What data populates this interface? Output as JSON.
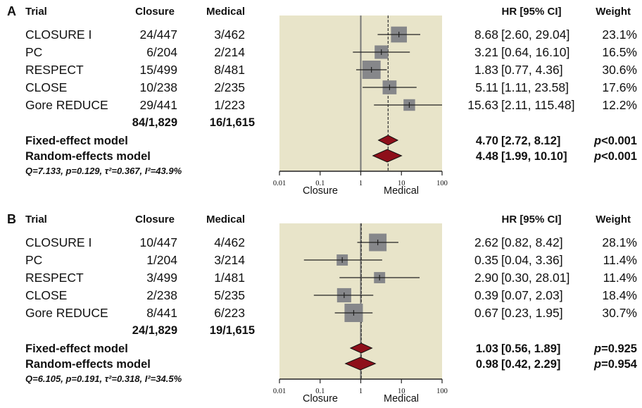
{
  "chart_data": [
    {
      "type": "forest",
      "panel_label": "A",
      "headers": {
        "trial": "Trial",
        "closure": "Closure",
        "medical": "Medical",
        "hr": "HR [95% CI]",
        "weight": "Weight"
      },
      "x_scale": "log",
      "xlim": [
        0.01,
        100
      ],
      "x_ticks": [
        "0.01",
        "0.1",
        "1",
        "10",
        "100"
      ],
      "x_direction_labels": {
        "left": "Closure",
        "right": "Medical"
      },
      "studies": [
        {
          "trial": "CLOSURE I",
          "closure": "24/447",
          "medical": "3/462",
          "hr": 8.68,
          "lo": 2.6,
          "hi": 29.04,
          "hr_text": "8.68",
          "ci_text": "[2.60, 29.04]",
          "weight": 23.1,
          "weight_text": "23.1%"
        },
        {
          "trial": "PC",
          "closure": "6/204",
          "medical": "2/214",
          "hr": 3.21,
          "lo": 0.64,
          "hi": 16.1,
          "hr_text": "3.21",
          "ci_text": "[0.64, 16.10]",
          "weight": 16.5,
          "weight_text": "16.5%"
        },
        {
          "trial": "RESPECT",
          "closure": "15/499",
          "medical": "8/481",
          "hr": 1.83,
          "lo": 0.77,
          "hi": 4.36,
          "hr_text": "1.83",
          "ci_text": "[0.77, 4.36]",
          "weight": 30.6,
          "weight_text": "30.6%"
        },
        {
          "trial": "CLOSE",
          "closure": "10/238",
          "medical": "2/235",
          "hr": 5.11,
          "lo": 1.11,
          "hi": 23.58,
          "hr_text": "5.11",
          "ci_text": "[1.11, 23.58]",
          "weight": 17.6,
          "weight_text": "17.6%"
        },
        {
          "trial": "Gore REDUCE",
          "closure": "29/441",
          "medical": "1/223",
          "hr": 15.63,
          "lo": 2.11,
          "hi": 115.48,
          "hr_text": "15.63",
          "ci_text": "[2.11, 115.48]",
          "weight": 12.2,
          "weight_text": "12.2%"
        }
      ],
      "totals": {
        "closure": "84/1,829",
        "medical": "16/1,615"
      },
      "models": [
        {
          "name": "Fixed-effect model",
          "hr": 4.7,
          "lo": 2.72,
          "hi": 8.12,
          "hr_text": "4.70",
          "ci_text": "[2.72, 8.12]",
          "p_prefix": "p",
          "p_text": "<0.001"
        },
        {
          "name": "Random-effects model",
          "hr": 4.48,
          "lo": 1.99,
          "hi": 10.1,
          "hr_text": "4.48",
          "ci_text": "[1.99, 10.10]",
          "p_prefix": "p",
          "p_text": "<0.001"
        }
      ],
      "heterogeneity": "Q=7.133, p=0.129, τ²=0.367, I²=43.9%"
    },
    {
      "type": "forest",
      "panel_label": "B",
      "headers": {
        "trial": "Trial",
        "closure": "Closure",
        "medical": "Medical",
        "hr": "HR [95% CI]",
        "weight": "Weight"
      },
      "x_scale": "log",
      "xlim": [
        0.01,
        100
      ],
      "x_ticks": [
        "0.01",
        "0.1",
        "1",
        "10",
        "100"
      ],
      "x_direction_labels": {
        "left": "Closure",
        "right": "Medical"
      },
      "studies": [
        {
          "trial": "CLOSURE I",
          "closure": "10/447",
          "medical": "4/462",
          "hr": 2.62,
          "lo": 0.82,
          "hi": 8.42,
          "hr_text": "2.62",
          "ci_text": "[0.82, 8.42]",
          "weight": 28.1,
          "weight_text": "28.1%"
        },
        {
          "trial": "PC",
          "closure": "1/204",
          "medical": "3/214",
          "hr": 0.35,
          "lo": 0.04,
          "hi": 3.36,
          "hr_text": "0.35",
          "ci_text": "[0.04, 3.36]",
          "weight": 11.4,
          "weight_text": "11.4%"
        },
        {
          "trial": "RESPECT",
          "closure": "3/499",
          "medical": "1/481",
          "hr": 2.9,
          "lo": 0.3,
          "hi": 28.01,
          "hr_text": "2.90",
          "ci_text": "[0.30, 28.01]",
          "weight": 11.4,
          "weight_text": "11.4%"
        },
        {
          "trial": "CLOSE",
          "closure": "2/238",
          "medical": "5/235",
          "hr": 0.39,
          "lo": 0.07,
          "hi": 2.03,
          "hr_text": "0.39",
          "ci_text": "[0.07, 2.03]",
          "weight": 18.4,
          "weight_text": "18.4%"
        },
        {
          "trial": "Gore REDUCE",
          "closure": "8/441",
          "medical": "6/223",
          "hr": 0.67,
          "lo": 0.23,
          "hi": 1.95,
          "hr_text": "0.67",
          "ci_text": "[0.23, 1.95]",
          "weight": 30.7,
          "weight_text": "30.7%"
        }
      ],
      "totals": {
        "closure": "24/1,829",
        "medical": "19/1,615"
      },
      "models": [
        {
          "name": "Fixed-effect model",
          "hr": 1.03,
          "lo": 0.56,
          "hi": 1.89,
          "hr_text": "1.03",
          "ci_text": "[0.56, 1.89]",
          "p_prefix": "p",
          "p_text": "=0.925"
        },
        {
          "name": "Random-effects model",
          "hr": 0.98,
          "lo": 0.42,
          "hi": 2.29,
          "hr_text": "0.98",
          "ci_text": "[0.42, 2.29]",
          "p_prefix": "p",
          "p_text": "=0.954"
        }
      ],
      "heterogeneity": "Q=6.105, p=0.191, τ²=0.318, I²=34.5%"
    }
  ],
  "colors": {
    "plot_background": "#e8e4c9",
    "square": "#86878a",
    "diamond": "#8e0f1a",
    "line": "#222222"
  }
}
